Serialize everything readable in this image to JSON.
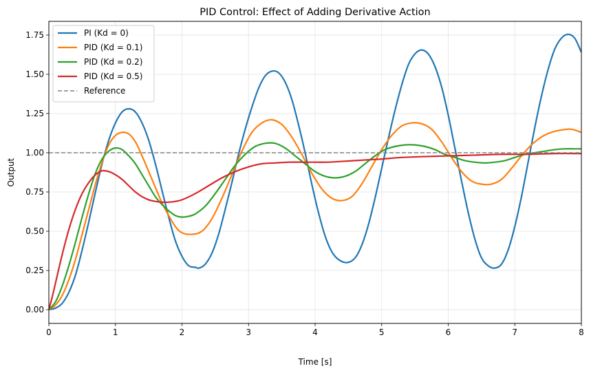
{
  "chart_data": {
    "type": "line",
    "title": "PID Control: Effect of Adding Derivative Action",
    "xlabel": "Time [s]",
    "ylabel": "Output",
    "xlim": [
      0,
      8
    ],
    "ylim": [
      -0.0875,
      1.8375
    ],
    "xticks": [
      0,
      1,
      2,
      3,
      4,
      5,
      6,
      7,
      8
    ],
    "xtick_labels": [
      "0",
      "1",
      "2",
      "3",
      "4",
      "5",
      "6",
      "7",
      "8"
    ],
    "yticks": [
      0,
      0.25,
      0.5,
      0.75,
      1.0,
      1.25,
      1.5,
      1.75
    ],
    "ytick_labels": [
      "0.00",
      "0.25",
      "0.50",
      "0.75",
      "1.00",
      "1.25",
      "1.50",
      "1.75"
    ],
    "grid": true,
    "legend_position": "top-left",
    "series": [
      {
        "name": "PI (Kd = 0)",
        "color": "#1f77b4",
        "style": "solid",
        "points": [
          [
            0,
            0
          ],
          [
            0.1,
            0.01
          ],
          [
            0.2,
            0.04
          ],
          [
            0.3,
            0.11
          ],
          [
            0.4,
            0.22
          ],
          [
            0.5,
            0.38
          ],
          [
            0.6,
            0.56
          ],
          [
            0.7,
            0.75
          ],
          [
            0.8,
            0.93
          ],
          [
            0.9,
            1.08
          ],
          [
            1.0,
            1.19
          ],
          [
            1.1,
            1.26
          ],
          [
            1.2,
            1.28
          ],
          [
            1.3,
            1.26
          ],
          [
            1.4,
            1.19
          ],
          [
            1.5,
            1.08
          ],
          [
            1.6,
            0.93
          ],
          [
            1.7,
            0.76
          ],
          [
            1.8,
            0.59
          ],
          [
            1.9,
            0.44
          ],
          [
            2.0,
            0.34
          ],
          [
            2.1,
            0.28
          ],
          [
            2.2,
            0.27
          ],
          [
            2.26,
            0.265
          ],
          [
            2.35,
            0.29
          ],
          [
            2.45,
            0.36
          ],
          [
            2.55,
            0.48
          ],
          [
            2.65,
            0.64
          ],
          [
            2.75,
            0.81
          ],
          [
            2.85,
            0.99
          ],
          [
            2.95,
            1.15
          ],
          [
            3.05,
            1.29
          ],
          [
            3.15,
            1.41
          ],
          [
            3.25,
            1.49
          ],
          [
            3.35,
            1.52
          ],
          [
            3.45,
            1.51
          ],
          [
            3.55,
            1.45
          ],
          [
            3.65,
            1.34
          ],
          [
            3.75,
            1.18
          ],
          [
            3.85,
            1.0
          ],
          [
            3.95,
            0.8
          ],
          [
            4.05,
            0.62
          ],
          [
            4.15,
            0.47
          ],
          [
            4.25,
            0.37
          ],
          [
            4.35,
            0.32
          ],
          [
            4.48,
            0.3
          ],
          [
            4.6,
            0.33
          ],
          [
            4.7,
            0.41
          ],
          [
            4.8,
            0.54
          ],
          [
            4.9,
            0.71
          ],
          [
            5.0,
            0.9
          ],
          [
            5.1,
            1.09
          ],
          [
            5.2,
            1.27
          ],
          [
            5.3,
            1.43
          ],
          [
            5.4,
            1.56
          ],
          [
            5.5,
            1.63
          ],
          [
            5.6,
            1.655
          ],
          [
            5.7,
            1.63
          ],
          [
            5.8,
            1.55
          ],
          [
            5.9,
            1.42
          ],
          [
            6.0,
            1.24
          ],
          [
            6.1,
            1.03
          ],
          [
            6.2,
            0.82
          ],
          [
            6.3,
            0.62
          ],
          [
            6.4,
            0.45
          ],
          [
            6.5,
            0.33
          ],
          [
            6.6,
            0.28
          ],
          [
            6.7,
            0.265
          ],
          [
            6.8,
            0.29
          ],
          [
            6.9,
            0.38
          ],
          [
            7.0,
            0.53
          ],
          [
            7.1,
            0.72
          ],
          [
            7.2,
            0.94
          ],
          [
            7.3,
            1.16
          ],
          [
            7.4,
            1.36
          ],
          [
            7.5,
            1.53
          ],
          [
            7.6,
            1.66
          ],
          [
            7.7,
            1.73
          ],
          [
            7.8,
            1.755
          ],
          [
            7.9,
            1.73
          ],
          [
            8.0,
            1.64
          ]
        ]
      },
      {
        "name": "PID (Kd = 0.1)",
        "color": "#ff7f0e",
        "style": "solid",
        "points": [
          [
            0,
            0
          ],
          [
            0.1,
            0.03
          ],
          [
            0.2,
            0.09
          ],
          [
            0.3,
            0.19
          ],
          [
            0.4,
            0.32
          ],
          [
            0.5,
            0.48
          ],
          [
            0.6,
            0.64
          ],
          [
            0.7,
            0.8
          ],
          [
            0.8,
            0.94
          ],
          [
            0.9,
            1.05
          ],
          [
            1.0,
            1.11
          ],
          [
            1.1,
            1.13
          ],
          [
            1.2,
            1.12
          ],
          [
            1.3,
            1.07
          ],
          [
            1.4,
            0.98
          ],
          [
            1.5,
            0.88
          ],
          [
            1.6,
            0.78
          ],
          [
            1.7,
            0.68
          ],
          [
            1.8,
            0.6
          ],
          [
            1.9,
            0.53
          ],
          [
            2.0,
            0.49
          ],
          [
            2.15,
            0.48
          ],
          [
            2.3,
            0.5
          ],
          [
            2.45,
            0.58
          ],
          [
            2.6,
            0.71
          ],
          [
            2.75,
            0.86
          ],
          [
            2.9,
            1.01
          ],
          [
            3.05,
            1.13
          ],
          [
            3.2,
            1.19
          ],
          [
            3.35,
            1.21
          ],
          [
            3.5,
            1.18
          ],
          [
            3.65,
            1.1
          ],
          [
            3.8,
            0.99
          ],
          [
            3.95,
            0.87
          ],
          [
            4.1,
            0.77
          ],
          [
            4.25,
            0.71
          ],
          [
            4.4,
            0.695
          ],
          [
            4.55,
            0.72
          ],
          [
            4.7,
            0.8
          ],
          [
            4.85,
            0.91
          ],
          [
            5.0,
            1.02
          ],
          [
            5.15,
            1.11
          ],
          [
            5.3,
            1.17
          ],
          [
            5.45,
            1.19
          ],
          [
            5.6,
            1.185
          ],
          [
            5.75,
            1.15
          ],
          [
            5.9,
            1.07
          ],
          [
            6.05,
            0.97
          ],
          [
            6.2,
            0.88
          ],
          [
            6.35,
            0.82
          ],
          [
            6.5,
            0.8
          ],
          [
            6.65,
            0.8
          ],
          [
            6.8,
            0.83
          ],
          [
            6.95,
            0.9
          ],
          [
            7.1,
            0.98
          ],
          [
            7.25,
            1.05
          ],
          [
            7.4,
            1.1
          ],
          [
            7.55,
            1.13
          ],
          [
            7.7,
            1.145
          ],
          [
            7.85,
            1.15
          ],
          [
            8.0,
            1.13
          ]
        ]
      },
      {
        "name": "PID (Kd = 0.2)",
        "color": "#2ca02c",
        "style": "solid",
        "points": [
          [
            0,
            0
          ],
          [
            0.1,
            0.05
          ],
          [
            0.2,
            0.15
          ],
          [
            0.3,
            0.28
          ],
          [
            0.4,
            0.43
          ],
          [
            0.5,
            0.59
          ],
          [
            0.6,
            0.74
          ],
          [
            0.7,
            0.87
          ],
          [
            0.8,
            0.96
          ],
          [
            0.9,
            1.01
          ],
          [
            1.0,
            1.03
          ],
          [
            1.1,
            1.02
          ],
          [
            1.2,
            0.98
          ],
          [
            1.3,
            0.93
          ],
          [
            1.4,
            0.86
          ],
          [
            1.5,
            0.79
          ],
          [
            1.6,
            0.72
          ],
          [
            1.7,
            0.67
          ],
          [
            1.8,
            0.63
          ],
          [
            1.9,
            0.6
          ],
          [
            2.0,
            0.59
          ],
          [
            2.1,
            0.595
          ],
          [
            2.2,
            0.61
          ],
          [
            2.35,
            0.66
          ],
          [
            2.5,
            0.74
          ],
          [
            2.65,
            0.83
          ],
          [
            2.8,
            0.92
          ],
          [
            2.95,
            0.99
          ],
          [
            3.1,
            1.04
          ],
          [
            3.25,
            1.06
          ],
          [
            3.4,
            1.06
          ],
          [
            3.55,
            1.03
          ],
          [
            3.7,
            0.98
          ],
          [
            3.85,
            0.93
          ],
          [
            4.0,
            0.88
          ],
          [
            4.15,
            0.85
          ],
          [
            4.3,
            0.84
          ],
          [
            4.45,
            0.85
          ],
          [
            4.6,
            0.88
          ],
          [
            4.75,
            0.93
          ],
          [
            4.9,
            0.98
          ],
          [
            5.05,
            1.02
          ],
          [
            5.2,
            1.04
          ],
          [
            5.35,
            1.05
          ],
          [
            5.5,
            1.05
          ],
          [
            5.65,
            1.04
          ],
          [
            5.8,
            1.02
          ],
          [
            5.95,
            0.99
          ],
          [
            6.1,
            0.97
          ],
          [
            6.25,
            0.95
          ],
          [
            6.4,
            0.94
          ],
          [
            6.55,
            0.935
          ],
          [
            6.7,
            0.94
          ],
          [
            6.85,
            0.95
          ],
          [
            7.0,
            0.97
          ],
          [
            7.15,
            0.99
          ],
          [
            7.3,
            1.0
          ],
          [
            7.45,
            1.01
          ],
          [
            7.6,
            1.02
          ],
          [
            7.75,
            1.025
          ],
          [
            7.9,
            1.025
          ],
          [
            8.0,
            1.025
          ]
        ]
      },
      {
        "name": "PID (Kd = 0.5)",
        "color": "#d62728",
        "style": "solid",
        "points": [
          [
            0,
            0
          ],
          [
            0.05,
            0.08
          ],
          [
            0.1,
            0.17
          ],
          [
            0.2,
            0.35
          ],
          [
            0.3,
            0.51
          ],
          [
            0.4,
            0.64
          ],
          [
            0.5,
            0.74
          ],
          [
            0.6,
            0.81
          ],
          [
            0.7,
            0.86
          ],
          [
            0.8,
            0.885
          ],
          [
            0.9,
            0.88
          ],
          [
            1.0,
            0.86
          ],
          [
            1.1,
            0.83
          ],
          [
            1.2,
            0.79
          ],
          [
            1.3,
            0.75
          ],
          [
            1.4,
            0.72
          ],
          [
            1.5,
            0.7
          ],
          [
            1.6,
            0.69
          ],
          [
            1.7,
            0.685
          ],
          [
            1.8,
            0.685
          ],
          [
            1.9,
            0.69
          ],
          [
            2.0,
            0.7
          ],
          [
            2.2,
            0.74
          ],
          [
            2.4,
            0.79
          ],
          [
            2.6,
            0.84
          ],
          [
            2.8,
            0.88
          ],
          [
            3.0,
            0.91
          ],
          [
            3.2,
            0.93
          ],
          [
            3.4,
            0.935
          ],
          [
            3.6,
            0.94
          ],
          [
            3.8,
            0.94
          ],
          [
            4.0,
            0.94
          ],
          [
            4.2,
            0.94
          ],
          [
            4.4,
            0.945
          ],
          [
            4.6,
            0.95
          ],
          [
            4.8,
            0.955
          ],
          [
            5.0,
            0.96
          ],
          [
            5.3,
            0.97
          ],
          [
            5.6,
            0.975
          ],
          [
            6.0,
            0.98
          ],
          [
            6.4,
            0.985
          ],
          [
            6.8,
            0.99
          ],
          [
            7.2,
            0.99
          ],
          [
            7.6,
            0.995
          ],
          [
            8.0,
            0.995
          ]
        ]
      },
      {
        "name": "Reference",
        "color": "#808080",
        "style": "dashed",
        "points": [
          [
            0,
            1.0
          ],
          [
            8,
            1.0
          ]
        ]
      }
    ]
  }
}
